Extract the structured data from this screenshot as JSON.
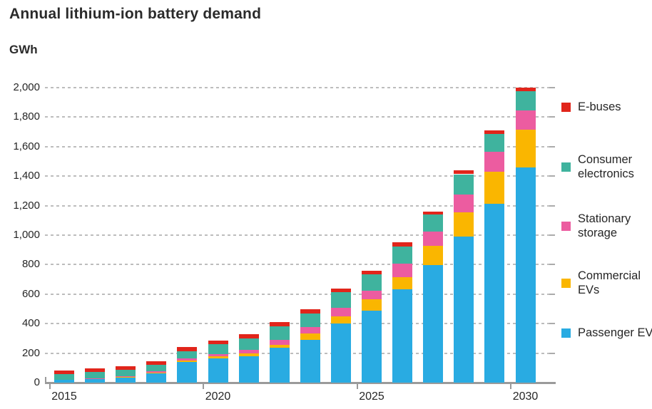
{
  "title": "Annual lithium-ion battery demand",
  "y_axis_unit": "GWh",
  "chart_data": {
    "type": "bar",
    "stacked": true,
    "title": "Annual lithium-ion battery demand",
    "ylabel": "GWh",
    "xlabel": "",
    "ylim": [
      0,
      2000
    ],
    "ytick_interval": 200,
    "ytick_labels": [
      "0",
      "200",
      "400",
      "600",
      "800",
      "1,000",
      "1,200",
      "1,400",
      "1,600",
      "1,800",
      "2,000"
    ],
    "xtick_labels": [
      "2015",
      "2020",
      "2025",
      "2030"
    ],
    "grid": "horizontal dashed",
    "legend_position": "right",
    "categories": [
      2015,
      2016,
      2017,
      2018,
      2019,
      2020,
      2021,
      2022,
      2023,
      2024,
      2025,
      2026,
      2027,
      2028,
      2029,
      2030
    ],
    "series": [
      {
        "name": "Passenger EVs",
        "color": "#29ABE2",
        "values": [
          18,
          28,
          37,
          64,
          142,
          165,
          179,
          235,
          290,
          400,
          490,
          635,
          798,
          990,
          1214,
          1458
        ]
      },
      {
        "name": "Commercial EVs",
        "color": "#FAB600",
        "values": [
          0,
          0,
          2,
          4,
          6,
          13,
          18,
          23,
          42,
          50,
          75,
          82,
          128,
          165,
          214,
          255
        ]
      },
      {
        "name": "Stationary storage",
        "color": "#EC5CA0",
        "values": [
          0,
          2,
          4,
          11,
          18,
          15,
          24,
          32,
          45,
          58,
          58,
          90,
          100,
          118,
          135,
          130
        ]
      },
      {
        "name": "Consumer electronics",
        "color": "#3FB39E",
        "values": [
          42,
          43,
          43,
          40,
          48,
          67,
          80,
          90,
          91,
          105,
          112,
          117,
          112,
          140,
          122,
          133
        ]
      },
      {
        "name": "E-buses",
        "color": "#E1251B",
        "values": [
          20,
          22,
          24,
          26,
          26,
          25,
          29,
          30,
          32,
          27,
          25,
          26,
          22,
          27,
          25,
          24
        ]
      }
    ]
  },
  "legend": {
    "items": [
      {
        "label": "E-buses",
        "color": "#E1251B"
      },
      {
        "label": "Consumer electronics",
        "color": "#3FB39E"
      },
      {
        "label": "Stationary storage",
        "color": "#EC5CA0"
      },
      {
        "label": "Commercial EVs",
        "color": "#FAB600"
      },
      {
        "label": "Passenger EVs",
        "color": "#29ABE2"
      }
    ]
  }
}
